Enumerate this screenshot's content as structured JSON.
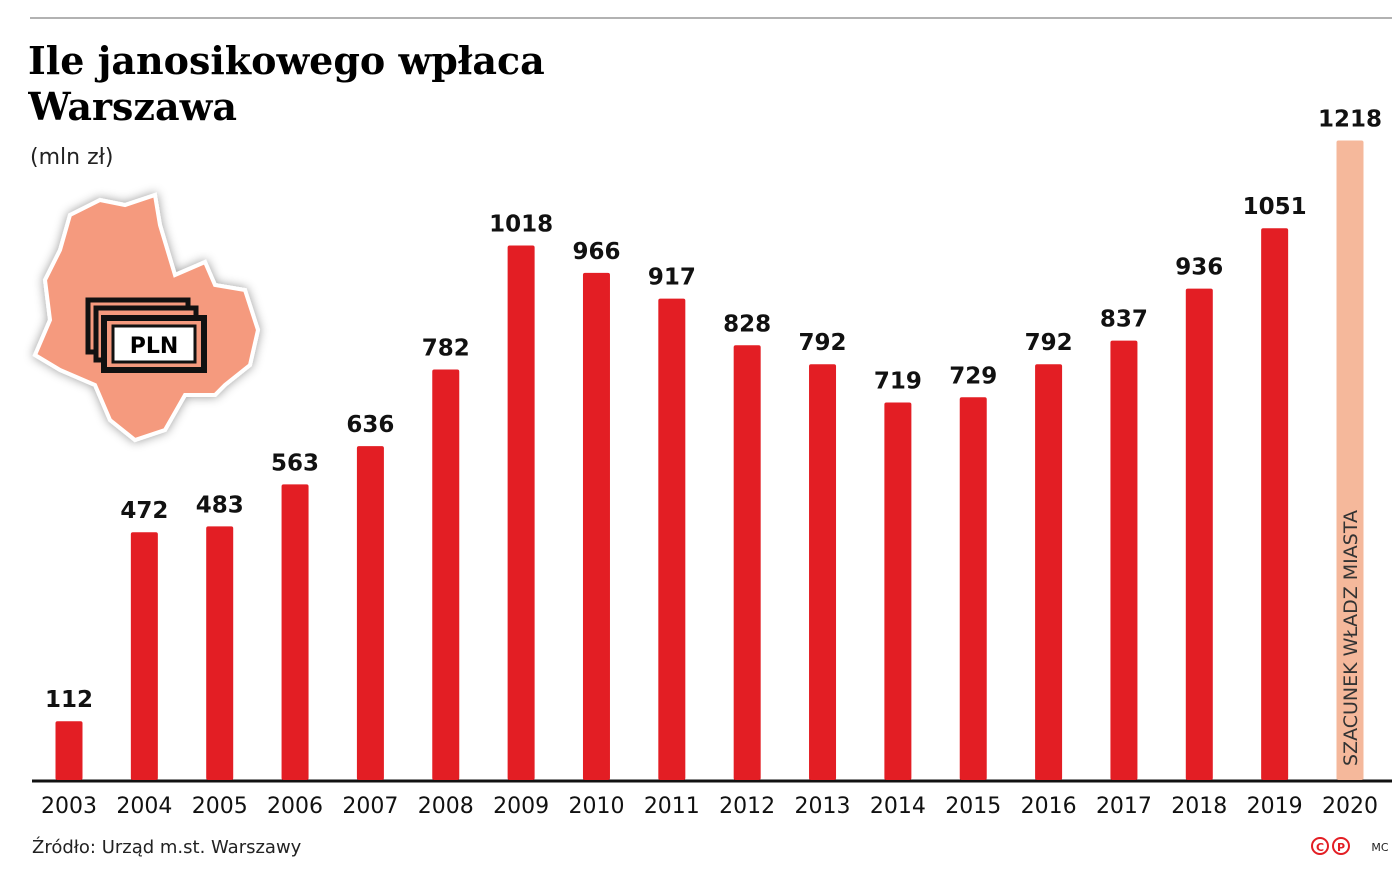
{
  "chart_data": {
    "type": "bar",
    "title": "Ile janosikowego wpłaca Warszawa",
    "subtitle": "(mln zł)",
    "categories": [
      "2003",
      "2004",
      "2005",
      "2006",
      "2007",
      "2008",
      "2009",
      "2010",
      "2011",
      "2012",
      "2013",
      "2014",
      "2015",
      "2016",
      "2017",
      "2018",
      "2019",
      "2020"
    ],
    "values": [
      112,
      472,
      483,
      563,
      636,
      782,
      1018,
      966,
      917,
      828,
      792,
      719,
      729,
      792,
      837,
      936,
      1051,
      1218
    ],
    "colors": [
      "#e31e24",
      "#e31e24",
      "#e31e24",
      "#e31e24",
      "#e31e24",
      "#e31e24",
      "#e31e24",
      "#e31e24",
      "#e31e24",
      "#e31e24",
      "#e31e24",
      "#e31e24",
      "#e31e24",
      "#e31e24",
      "#e31e24",
      "#e31e24",
      "#e31e24",
      "#f5b89b"
    ],
    "annotation": "SZACUNEK WŁADZ MIASTA",
    "icon_label": "PLN",
    "source": "Źródło: Urząd m.st. Warszawy",
    "logo": [
      "C",
      "P"
    ],
    "author": "MC"
  }
}
